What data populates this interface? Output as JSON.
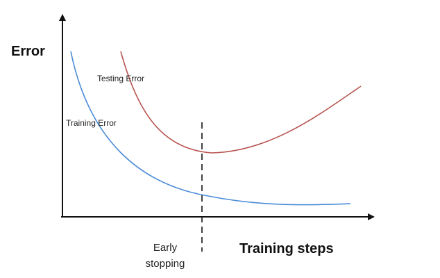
{
  "diagram": {
    "y_axis_label": "Error",
    "x_axis_label": "Training steps",
    "curves": {
      "testing": {
        "label": "Testing Error",
        "color": "#b85450"
      },
      "training": {
        "label": "Training Error",
        "color": "#4a8bd8"
      }
    },
    "early_stopping": {
      "line1": "Early",
      "line2": "stopping"
    }
  }
}
